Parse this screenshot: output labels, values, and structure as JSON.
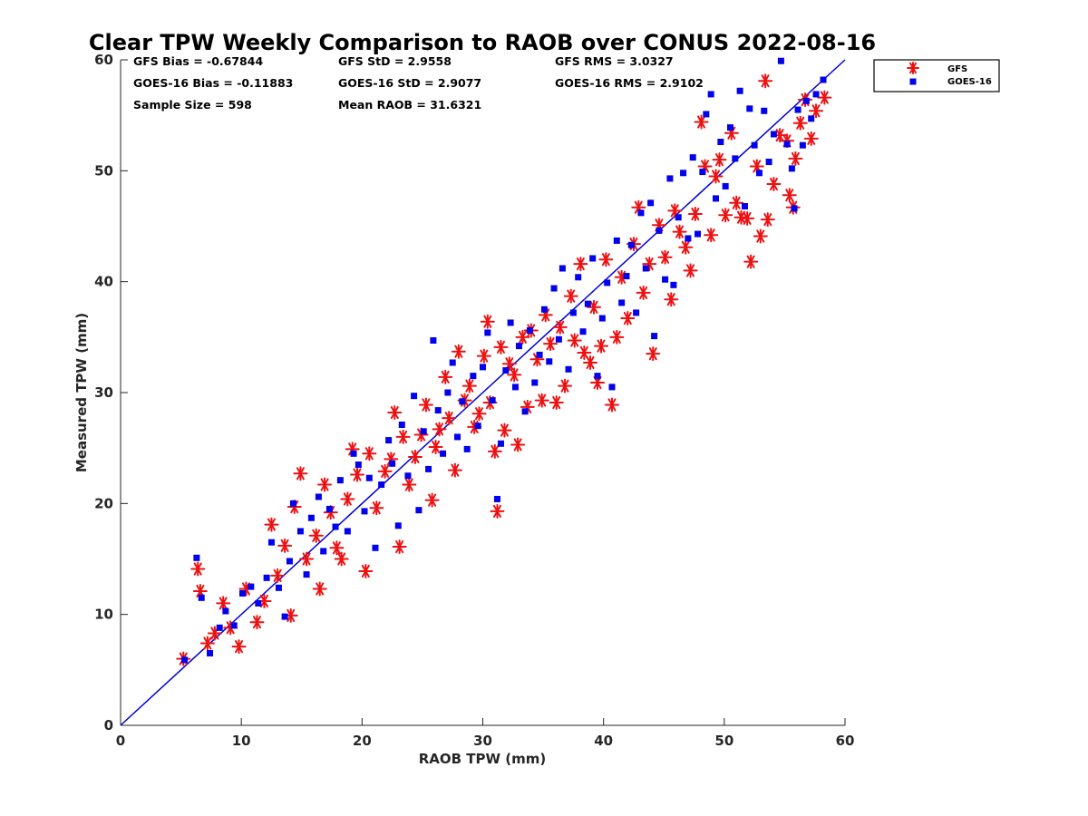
{
  "chart_data": {
    "type": "scatter",
    "title": "Clear TPW Weekly Comparison to RAOB over CONUS 2022-08-16",
    "xlabel": "RAOB TPW (mm)",
    "ylabel": "Measured TPW (mm)",
    "xlim": [
      0,
      60
    ],
    "ylim": [
      0,
      60
    ],
    "xticks": [
      "0",
      "10",
      "20",
      "30",
      "40",
      "50",
      "60"
    ],
    "yticks": [
      "0",
      "10",
      "20",
      "30",
      "40",
      "50",
      "60"
    ],
    "grid": false,
    "legend_position": "outside-top-right",
    "reference_line": {
      "x": [
        0,
        60
      ],
      "y": [
        0,
        60
      ],
      "color": "#0000d6"
    },
    "stats": [
      [
        "GFS Bias = -0.67844",
        "GFS StD = 2.9558",
        "GFS RMS = 3.0327"
      ],
      [
        "GOES-16 Bias = -0.11883",
        "GOES-16 StD = 2.9077",
        "GOES-16 RMS = 2.9102"
      ],
      [
        "Sample Size = 598",
        "Mean RAOB = 31.6321",
        ""
      ]
    ],
    "series": [
      {
        "name": "GFS",
        "marker": "asterisk",
        "color": "#ee1111",
        "points": [
          [
            5.2,
            6.0
          ],
          [
            6.4,
            14.1
          ],
          [
            6.6,
            12.1
          ],
          [
            7.2,
            7.4
          ],
          [
            7.8,
            8.3
          ],
          [
            8.5,
            11.0
          ],
          [
            9.1,
            8.8
          ],
          [
            9.8,
            7.1
          ],
          [
            10.4,
            12.3
          ],
          [
            11.3,
            9.3
          ],
          [
            11.9,
            11.2
          ],
          [
            12.5,
            18.1
          ],
          [
            13.0,
            13.5
          ],
          [
            13.6,
            16.2
          ],
          [
            14.1,
            9.9
          ],
          [
            14.4,
            19.7
          ],
          [
            14.9,
            22.7
          ],
          [
            15.4,
            15.0
          ],
          [
            16.2,
            17.1
          ],
          [
            16.5,
            12.3
          ],
          [
            16.9,
            21.7
          ],
          [
            17.4,
            19.2
          ],
          [
            17.9,
            16.0
          ],
          [
            18.3,
            15.0
          ],
          [
            18.8,
            20.4
          ],
          [
            19.2,
            24.9
          ],
          [
            19.6,
            22.6
          ],
          [
            20.3,
            13.9
          ],
          [
            20.6,
            24.5
          ],
          [
            21.2,
            19.6
          ],
          [
            21.9,
            22.9
          ],
          [
            22.4,
            24.0
          ],
          [
            22.7,
            28.2
          ],
          [
            23.1,
            16.1
          ],
          [
            23.4,
            26.0
          ],
          [
            23.9,
            21.7
          ],
          [
            24.4,
            24.2
          ],
          [
            24.9,
            26.2
          ],
          [
            25.3,
            28.9
          ],
          [
            25.8,
            20.3
          ],
          [
            26.1,
            25.1
          ],
          [
            26.4,
            26.7
          ],
          [
            26.9,
            31.4
          ],
          [
            27.2,
            27.7
          ],
          [
            27.7,
            23.0
          ],
          [
            28.0,
            33.7
          ],
          [
            28.5,
            29.3
          ],
          [
            28.9,
            30.6
          ],
          [
            29.3,
            26.9
          ],
          [
            29.7,
            28.1
          ],
          [
            30.1,
            33.3
          ],
          [
            30.4,
            36.4
          ],
          [
            30.6,
            29.1
          ],
          [
            31.0,
            24.7
          ],
          [
            31.2,
            19.3
          ],
          [
            31.5,
            34.1
          ],
          [
            31.8,
            26.6
          ],
          [
            32.2,
            32.6
          ],
          [
            32.6,
            31.6
          ],
          [
            32.9,
            25.3
          ],
          [
            33.3,
            35.0
          ],
          [
            33.7,
            28.7
          ],
          [
            34.0,
            35.6
          ],
          [
            34.5,
            33.0
          ],
          [
            34.9,
            29.3
          ],
          [
            35.2,
            37.0
          ],
          [
            35.6,
            34.4
          ],
          [
            36.1,
            29.1
          ],
          [
            36.4,
            35.9
          ],
          [
            36.8,
            30.6
          ],
          [
            37.3,
            38.7
          ],
          [
            37.6,
            34.7
          ],
          [
            38.1,
            41.6
          ],
          [
            38.4,
            33.6
          ],
          [
            38.9,
            32.7
          ],
          [
            39.2,
            37.7
          ],
          [
            39.5,
            30.9
          ],
          [
            39.8,
            34.2
          ],
          [
            40.2,
            42.0
          ],
          [
            40.7,
            28.9
          ],
          [
            41.1,
            35.0
          ],
          [
            41.5,
            40.4
          ],
          [
            42.0,
            36.7
          ],
          [
            42.5,
            43.4
          ],
          [
            42.9,
            46.7
          ],
          [
            43.3,
            39.0
          ],
          [
            43.8,
            41.6
          ],
          [
            44.1,
            33.5
          ],
          [
            44.6,
            45.1
          ],
          [
            45.1,
            42.2
          ],
          [
            45.6,
            38.4
          ],
          [
            45.9,
            46.4
          ],
          [
            46.3,
            44.5
          ],
          [
            46.8,
            43.1
          ],
          [
            47.2,
            41.0
          ],
          [
            47.6,
            46.1
          ],
          [
            48.1,
            54.4
          ],
          [
            48.4,
            50.4
          ],
          [
            48.9,
            44.2
          ],
          [
            49.3,
            49.5
          ],
          [
            49.6,
            51.0
          ],
          [
            50.1,
            46.0
          ],
          [
            50.6,
            53.4
          ],
          [
            51.0,
            47.1
          ],
          [
            51.4,
            45.8
          ],
          [
            51.9,
            45.7
          ],
          [
            52.2,
            41.8
          ],
          [
            52.7,
            50.4
          ],
          [
            53.0,
            44.1
          ],
          [
            53.4,
            58.1
          ],
          [
            53.6,
            45.6
          ],
          [
            54.1,
            48.8
          ],
          [
            54.6,
            53.2
          ],
          [
            55.2,
            52.7
          ],
          [
            55.4,
            47.8
          ],
          [
            55.7,
            46.7
          ],
          [
            55.9,
            51.1
          ],
          [
            56.3,
            54.3
          ],
          [
            56.7,
            56.4
          ],
          [
            57.2,
            52.9
          ],
          [
            57.6,
            55.4
          ],
          [
            58.3,
            56.6
          ]
        ]
      },
      {
        "name": "GOES-16",
        "marker": "square",
        "color": "#0000ee",
        "points": [
          [
            5.3,
            5.9
          ],
          [
            6.3,
            15.1
          ],
          [
            6.7,
            11.5
          ],
          [
            7.4,
            6.5
          ],
          [
            8.2,
            8.8
          ],
          [
            8.7,
            10.3
          ],
          [
            9.4,
            9.0
          ],
          [
            10.1,
            11.9
          ],
          [
            10.8,
            12.5
          ],
          [
            11.4,
            11.0
          ],
          [
            12.1,
            13.3
          ],
          [
            12.5,
            16.5
          ],
          [
            13.1,
            12.4
          ],
          [
            13.6,
            9.8
          ],
          [
            14.0,
            14.8
          ],
          [
            14.3,
            20.0
          ],
          [
            14.9,
            17.5
          ],
          [
            15.4,
            13.6
          ],
          [
            15.8,
            18.7
          ],
          [
            16.4,
            20.6
          ],
          [
            16.8,
            15.7
          ],
          [
            17.3,
            19.5
          ],
          [
            17.8,
            17.9
          ],
          [
            18.2,
            22.1
          ],
          [
            18.8,
            17.5
          ],
          [
            19.3,
            24.5
          ],
          [
            19.7,
            23.5
          ],
          [
            20.2,
            19.3
          ],
          [
            20.6,
            22.3
          ],
          [
            21.1,
            16.0
          ],
          [
            21.6,
            21.7
          ],
          [
            22.2,
            25.7
          ],
          [
            22.5,
            23.6
          ],
          [
            23.0,
            18.0
          ],
          [
            23.3,
            27.1
          ],
          [
            23.8,
            22.5
          ],
          [
            24.3,
            29.7
          ],
          [
            24.7,
            19.4
          ],
          [
            25.1,
            26.5
          ],
          [
            25.5,
            23.1
          ],
          [
            25.9,
            34.7
          ],
          [
            26.3,
            28.4
          ],
          [
            26.7,
            24.5
          ],
          [
            27.1,
            30.0
          ],
          [
            27.5,
            32.7
          ],
          [
            27.9,
            26.0
          ],
          [
            28.3,
            29.2
          ],
          [
            28.7,
            24.9
          ],
          [
            29.2,
            31.5
          ],
          [
            29.6,
            27.0
          ],
          [
            30.0,
            32.3
          ],
          [
            30.4,
            35.4
          ],
          [
            30.8,
            29.3
          ],
          [
            31.2,
            20.4
          ],
          [
            31.5,
            25.4
          ],
          [
            31.9,
            32.0
          ],
          [
            32.3,
            36.3
          ],
          [
            32.7,
            30.5
          ],
          [
            33.0,
            34.2
          ],
          [
            33.5,
            28.3
          ],
          [
            33.9,
            35.6
          ],
          [
            34.3,
            30.9
          ],
          [
            34.7,
            33.4
          ],
          [
            35.1,
            37.5
          ],
          [
            35.5,
            32.8
          ],
          [
            35.9,
            39.4
          ],
          [
            36.3,
            34.8
          ],
          [
            36.6,
            41.2
          ],
          [
            37.1,
            32.1
          ],
          [
            37.5,
            37.2
          ],
          [
            37.9,
            40.4
          ],
          [
            38.3,
            35.5
          ],
          [
            38.7,
            38.0
          ],
          [
            39.1,
            42.1
          ],
          [
            39.5,
            31.5
          ],
          [
            39.9,
            36.7
          ],
          [
            40.3,
            39.9
          ],
          [
            40.7,
            30.5
          ],
          [
            41.1,
            43.7
          ],
          [
            41.5,
            38.1
          ],
          [
            41.9,
            40.5
          ],
          [
            42.3,
            43.3
          ],
          [
            42.7,
            37.2
          ],
          [
            43.1,
            46.2
          ],
          [
            43.5,
            41.2
          ],
          [
            43.9,
            47.1
          ],
          [
            44.2,
            35.1
          ],
          [
            44.6,
            44.6
          ],
          [
            45.1,
            40.2
          ],
          [
            45.5,
            49.3
          ],
          [
            45.8,
            39.7
          ],
          [
            46.2,
            45.8
          ],
          [
            46.6,
            49.8
          ],
          [
            47.0,
            43.9
          ],
          [
            47.4,
            51.2
          ],
          [
            47.8,
            44.3
          ],
          [
            48.2,
            49.9
          ],
          [
            48.5,
            55.1
          ],
          [
            48.9,
            56.9
          ],
          [
            49.3,
            47.5
          ],
          [
            49.7,
            52.6
          ],
          [
            50.1,
            48.6
          ],
          [
            50.5,
            53.9
          ],
          [
            50.9,
            51.1
          ],
          [
            51.3,
            57.2
          ],
          [
            51.7,
            46.8
          ],
          [
            52.1,
            55.6
          ],
          [
            52.5,
            52.3
          ],
          [
            52.9,
            49.8
          ],
          [
            53.3,
            55.4
          ],
          [
            53.7,
            50.8
          ],
          [
            54.1,
            53.3
          ],
          [
            54.7,
            59.9
          ],
          [
            55.2,
            52.4
          ],
          [
            55.6,
            50.2
          ],
          [
            55.8,
            46.6
          ],
          [
            56.1,
            55.5
          ],
          [
            56.5,
            52.3
          ],
          [
            56.8,
            56.3
          ],
          [
            57.2,
            54.7
          ],
          [
            57.6,
            56.9
          ],
          [
            58.2,
            58.2
          ]
        ]
      }
    ]
  }
}
